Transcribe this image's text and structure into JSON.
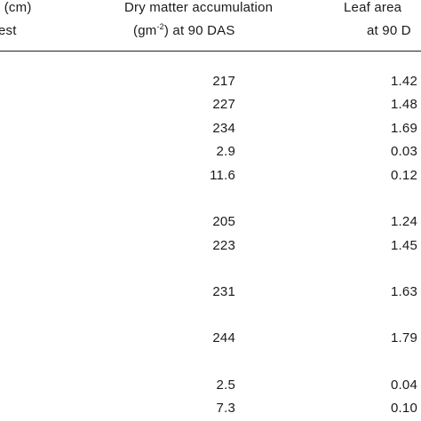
{
  "table": {
    "headers": {
      "col1_line1": "t (cm)",
      "col1_line2": "est",
      "col2_line1": "Dry matter accumulation",
      "col2_line2_pre": "(gm",
      "col2_line2_sup": "-2",
      "col2_line2_post": ") at  90 DAS",
      "col3_line1": "Leaf area",
      "col3_line2": "at 90 D"
    },
    "rows": [
      {
        "dry_matter": "217",
        "leaf_area": "1.42"
      },
      {
        "dry_matter": "227",
        "leaf_area": "1.48"
      },
      {
        "dry_matter": "234",
        "leaf_area": "1.69"
      },
      {
        "dry_matter": "2.9",
        "leaf_area": "0.03"
      },
      {
        "dry_matter": "11.6",
        "leaf_area": "0.12"
      },
      {
        "dry_matter": "205",
        "leaf_area": "1.24"
      },
      {
        "dry_matter": "223",
        "leaf_area": "1.45"
      },
      {
        "dry_matter": "231",
        "leaf_area": "1.63"
      },
      {
        "dry_matter": "244",
        "leaf_area": "1.79"
      },
      {
        "dry_matter": "2.5",
        "leaf_area": "0.04"
      },
      {
        "dry_matter": "7.3",
        "leaf_area": "0.10"
      }
    ]
  }
}
